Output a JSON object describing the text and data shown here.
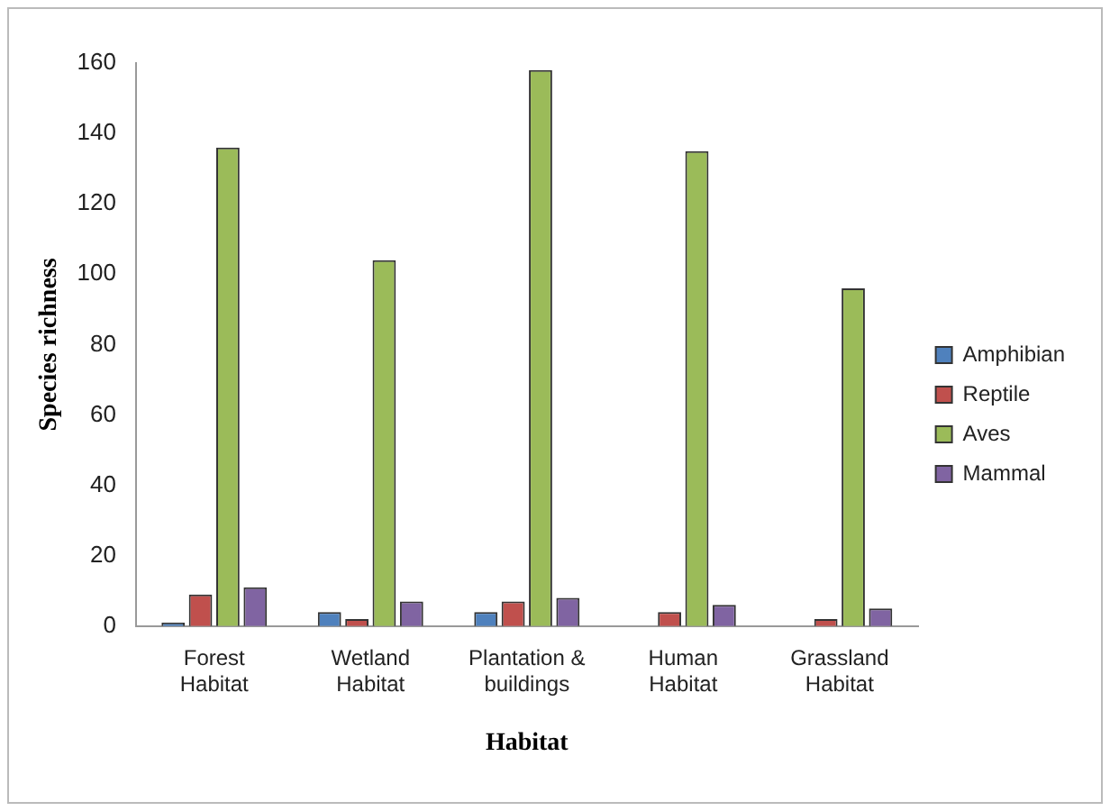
{
  "chart_data": {
    "type": "bar",
    "xlabel": "Habitat",
    "ylabel": "Species richness",
    "categories": [
      "Forest Habitat",
      "Wetland Habitat",
      "Plantation & buildings",
      "Human Habitat",
      "Grassland Habitat"
    ],
    "series": [
      {
        "name": "Amphibian",
        "color": "#4f81bd",
        "values": [
          1,
          4,
          4,
          0,
          0
        ]
      },
      {
        "name": "Reptile",
        "color": "#c0504d",
        "values": [
          9,
          2,
          7,
          4,
          2
        ]
      },
      {
        "name": "Aves",
        "color": "#9bbb59",
        "values": [
          136,
          104,
          158,
          135,
          96
        ]
      },
      {
        "name": "Mammal",
        "color": "#8064a2",
        "values": [
          11,
          7,
          8,
          6,
          5
        ]
      }
    ],
    "ylim": [
      0,
      160
    ],
    "yticks": [
      0,
      20,
      40,
      60,
      80,
      100,
      120,
      140,
      160
    ],
    "grid": false,
    "legend": "right"
  }
}
